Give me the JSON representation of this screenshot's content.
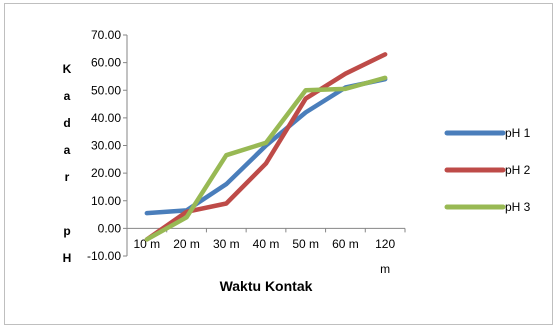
{
  "chart_data": {
    "type": "line",
    "categories": [
      "10 m",
      "20 m",
      "30 m",
      "40 m",
      "50 m",
      "60 m",
      "120 m"
    ],
    "series": [
      {
        "name": "pH 1",
        "color": "#4a7ebb",
        "values": [
          5.5,
          6.5,
          16,
          30,
          42,
          51,
          54
        ]
      },
      {
        "name": "pH 2",
        "color": "#be4b48",
        "values": [
          -4,
          6,
          9,
          23.5,
          47,
          56,
          63
        ]
      },
      {
        "name": "pH 3",
        "color": "#98b954",
        "values": [
          -4,
          4,
          26.5,
          31,
          50,
          50.5,
          54.5
        ]
      }
    ],
    "y_ticks": [
      "-10.00",
      "0.00",
      "10.00",
      "20.00",
      "30.00",
      "40.00",
      "50.00",
      "60.00",
      "70.00"
    ],
    "ylim": [
      -10,
      70
    ],
    "xlabel": "Waktu Kontak",
    "ylabel_lines": [
      "K",
      "a",
      "d",
      "a",
      "r",
      "",
      "p",
      "H"
    ],
    "grid": false,
    "legend_position": "right"
  }
}
